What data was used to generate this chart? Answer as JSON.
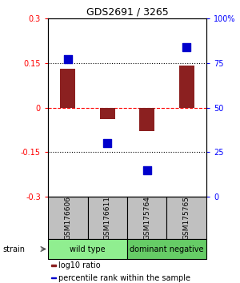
{
  "title": "GDS2691 / 3265",
  "samples": [
    "GSM176606",
    "GSM176611",
    "GSM175764",
    "GSM175765"
  ],
  "log10_ratio": [
    0.13,
    -0.04,
    -0.08,
    0.14
  ],
  "percentile_rank": [
    77,
    30,
    15,
    84
  ],
  "ylim_left": [
    -0.3,
    0.3
  ],
  "ylim_right": [
    0,
    100
  ],
  "yticks_left": [
    -0.3,
    -0.15,
    0,
    0.15,
    0.3
  ],
  "yticks_right": [
    0,
    25,
    50,
    75,
    100
  ],
  "ytick_labels_left": [
    "-0.3",
    "-0.15",
    "0",
    "0.15",
    "0.3"
  ],
  "ytick_labels_right": [
    "0",
    "25",
    "50",
    "75",
    "100%"
  ],
  "hlines_dotted": [
    -0.15,
    0.15
  ],
  "hline_red": 0,
  "bar_color": "#8B2020",
  "dot_color": "#0000CC",
  "bar_width": 0.38,
  "dot_size": 45,
  "groups": [
    {
      "label": "wild type",
      "samples": [
        0,
        1
      ],
      "color": "#90EE90"
    },
    {
      "label": "dominant negative",
      "samples": [
        2,
        3
      ],
      "color": "#66CC66"
    }
  ],
  "strain_label": "strain",
  "legend_items": [
    {
      "color": "#8B2020",
      "label": "log10 ratio"
    },
    {
      "color": "#0000CC",
      "label": "percentile rank within the sample"
    }
  ],
  "bg_color": "#FFFFFF",
  "label_box_color": "#C0C0C0",
  "label_box_edge": "#000000"
}
